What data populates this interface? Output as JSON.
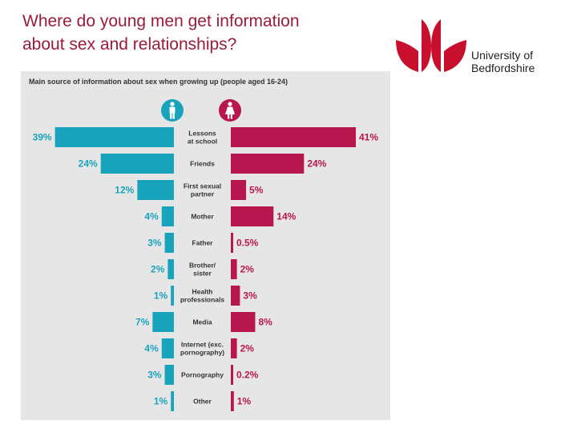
{
  "slide": {
    "title_lines": [
      "Where do young men get information",
      "about sex and relationships?"
    ],
    "title_color": "#9b1b3a"
  },
  "logo": {
    "name_lines": [
      "University of",
      "Bedfordshire"
    ],
    "mark_color": "#c8102e",
    "icon": "tulip-logo-icon"
  },
  "chart_data": {
    "type": "bar",
    "orientation": "horizontal-butterfly",
    "title": "Main source of information about sex when growing up (people aged 16-24)",
    "categories": [
      [
        "Lessons",
        "at school"
      ],
      [
        "Friends"
      ],
      [
        "First sexual",
        "partner"
      ],
      [
        "Mother"
      ],
      [
        "Father"
      ],
      [
        "Brother/",
        "sister"
      ],
      [
        "Health",
        "professionals"
      ],
      [
        "Media"
      ],
      [
        "Internet (exc.",
        "pornography)"
      ],
      [
        "Pornography"
      ],
      [
        "Other"
      ]
    ],
    "series": [
      {
        "icon": "male-icon",
        "color": "#1aa3bd",
        "values": [
          39,
          24,
          12,
          4,
          3,
          2,
          1,
          7,
          4,
          3,
          1
        ],
        "labels": [
          "39%",
          "24%",
          "12%",
          "4%",
          "3%",
          "2%",
          "1%",
          "7%",
          "4%",
          "3%",
          "1%"
        ]
      },
      {
        "icon": "female-icon",
        "color": "#b8164f",
        "values": [
          41,
          24,
          5,
          14,
          0.5,
          2,
          3,
          8,
          2,
          0.2,
          1
        ],
        "labels": [
          "41%",
          "24%",
          "5%",
          "14%",
          "0.5%",
          "2%",
          "3%",
          "8%",
          "2%",
          "0.2%",
          "1%"
        ]
      }
    ],
    "xlim": [
      0,
      41
    ],
    "grid": false,
    "legend": "top-icons"
  }
}
